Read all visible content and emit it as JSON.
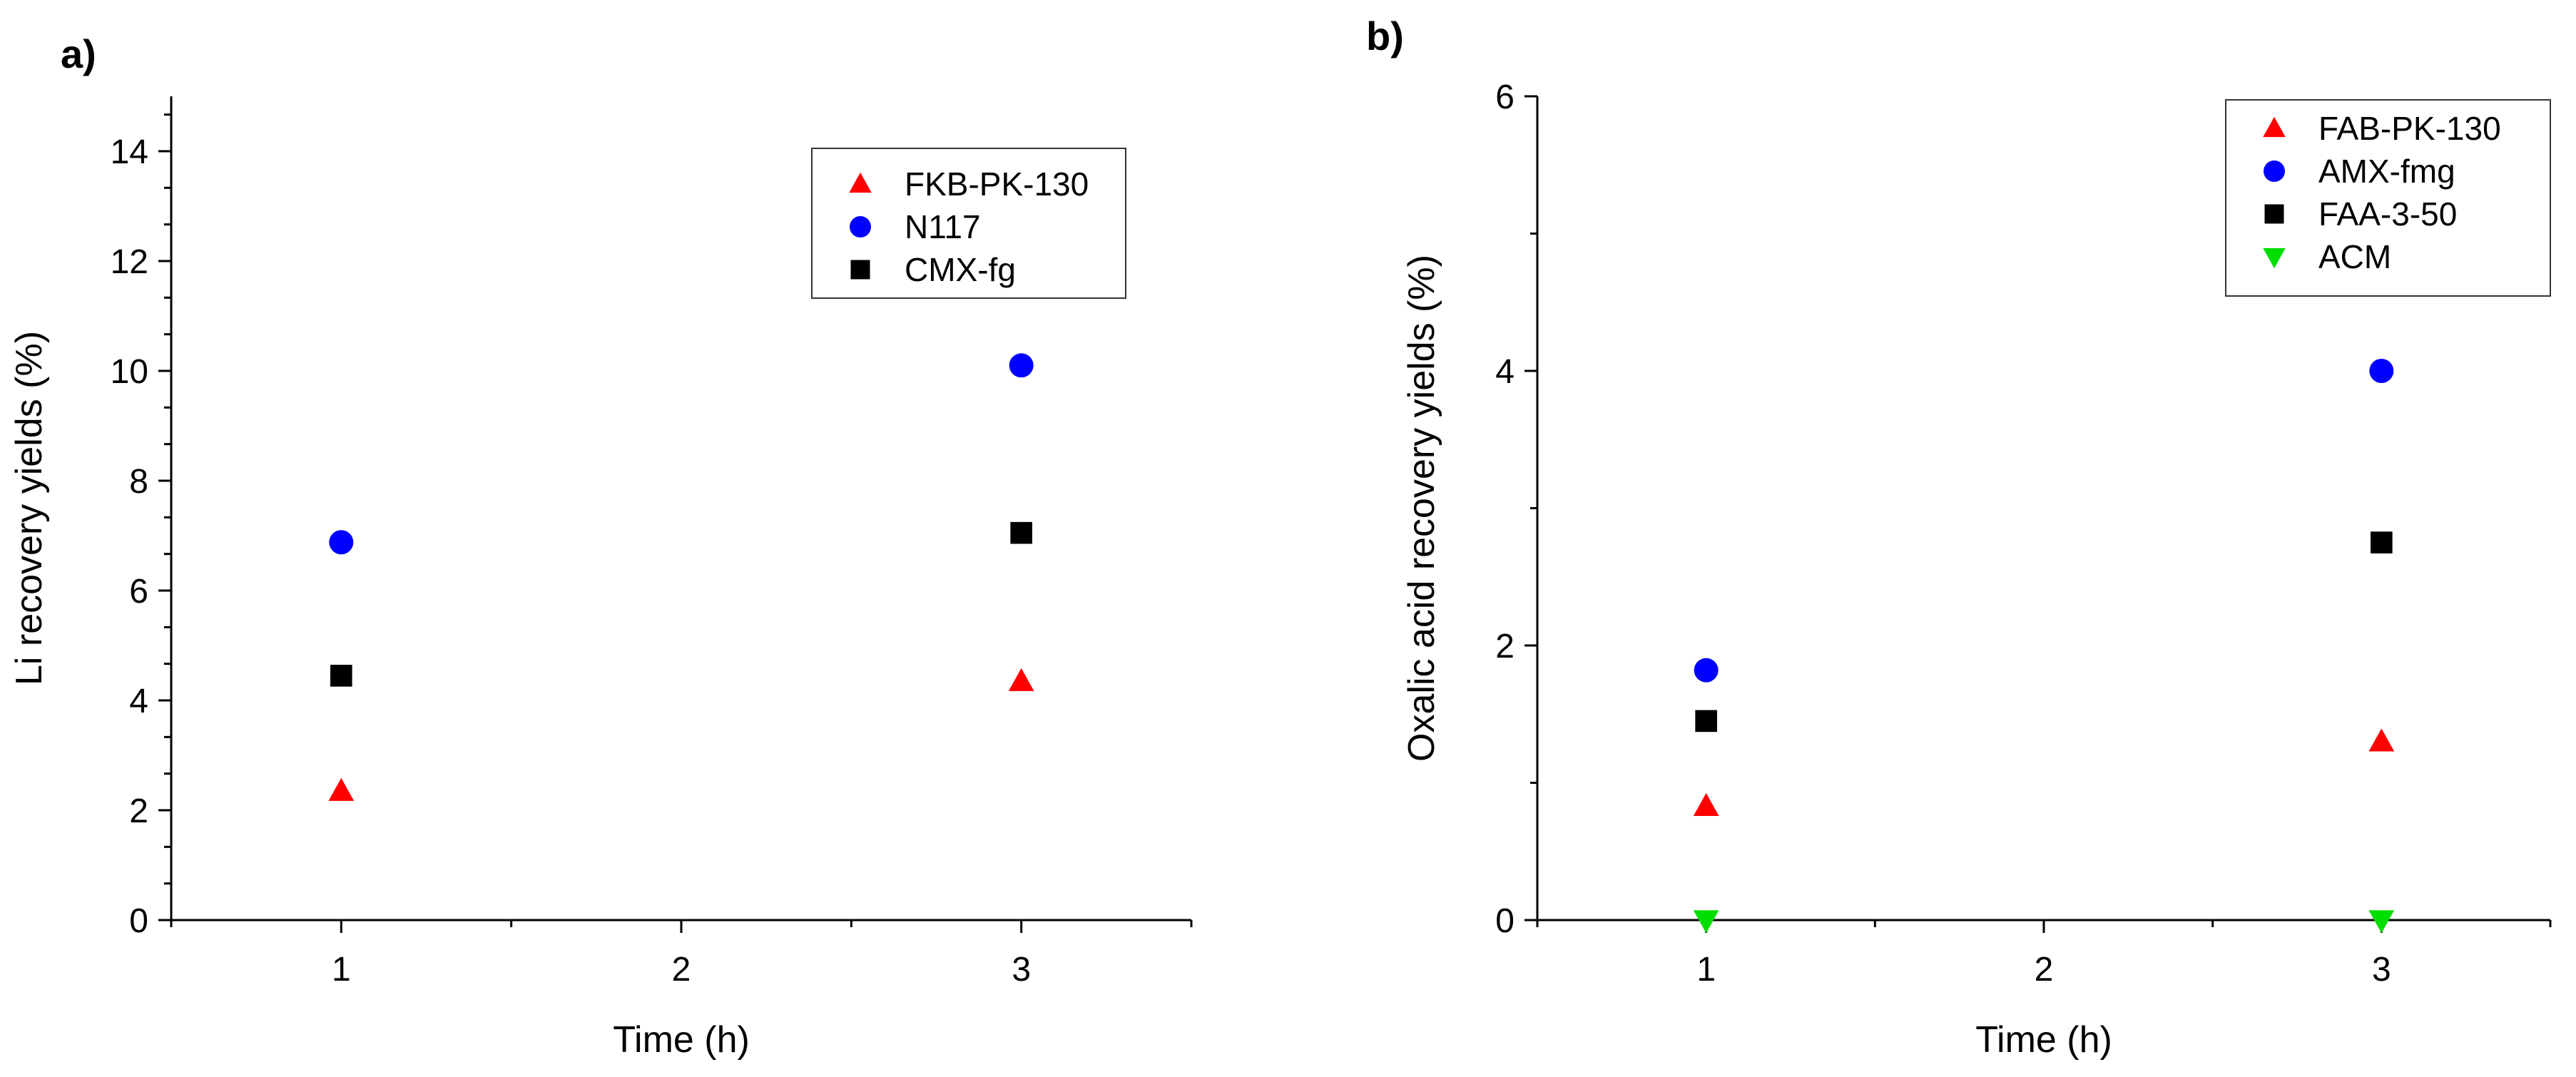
{
  "chart_data": [
    {
      "panel_label": "a)",
      "type": "scatter",
      "xlabel": "Time (h)",
      "ylabel": "Li recovery yields (%)",
      "xlim": [
        0.5,
        3.5
      ],
      "ylim": [
        0,
        15
      ],
      "xticks": [
        1,
        2,
        3
      ],
      "xtick_labels": [
        "1",
        "2",
        "3"
      ],
      "yticks": [
        0,
        2,
        4,
        6,
        8,
        10,
        12,
        14
      ],
      "ytick_labels": [
        "0",
        "2",
        "4",
        "6",
        "8",
        "10",
        "12",
        "14"
      ],
      "grid": false,
      "legend_position": "top-right",
      "series": [
        {
          "name": "FKB-PK-130",
          "marker": "triangle-up",
          "color": "#ff0000",
          "x": [
            1,
            3
          ],
          "y": [
            2.35,
            4.35
          ]
        },
        {
          "name": "N117",
          "marker": "circle",
          "color": "#0000ff",
          "x": [
            1,
            3
          ],
          "y": [
            6.88,
            10.1
          ]
        },
        {
          "name": "CMX-fg",
          "marker": "square",
          "color": "#000000",
          "x": [
            1,
            3
          ],
          "y": [
            4.45,
            7.05
          ]
        }
      ]
    },
    {
      "panel_label": "b)",
      "type": "scatter",
      "xlabel": "Time (h)",
      "ylabel": "Oxalic acid recovery yields (%)",
      "xlim": [
        0.5,
        3.5
      ],
      "ylim": [
        0,
        6
      ],
      "xticks": [
        1,
        2,
        3
      ],
      "xtick_labels": [
        "1",
        "2",
        "3"
      ],
      "yticks": [
        0,
        2,
        4,
        6
      ],
      "ytick_labels": [
        "0",
        "2",
        "4",
        "6"
      ],
      "grid": false,
      "legend_position": "top-right",
      "series": [
        {
          "name": "FAB-PK-130",
          "marker": "triangle-up",
          "color": "#ff0000",
          "x": [
            1,
            3
          ],
          "y": [
            0.83,
            1.3
          ]
        },
        {
          "name": "AMX-fmg",
          "marker": "circle",
          "color": "#0000ff",
          "x": [
            1,
            3
          ],
          "y": [
            1.82,
            4.0
          ]
        },
        {
          "name": "FAA-3-50",
          "marker": "square",
          "color": "#000000",
          "x": [
            1,
            3
          ],
          "y": [
            1.45,
            2.75
          ]
        },
        {
          "name": "ACM",
          "marker": "triangle-down",
          "color": "#00dd00",
          "x": [
            1,
            3
          ],
          "y": [
            0.0,
            0.0
          ]
        }
      ]
    }
  ]
}
